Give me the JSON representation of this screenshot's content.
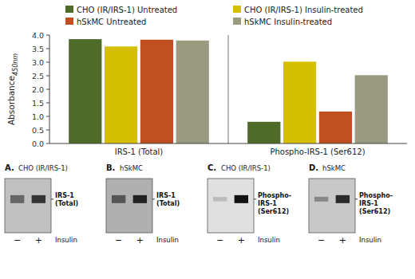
{
  "chart_data": {
    "type": "bar",
    "categories": [
      "IRS-1 (Total)",
      "Phospho-IRS-1 (Ser612)"
    ],
    "series": [
      {
        "name": "CHO (IR/IRS-1) Untreated",
        "color": "#4e6b28",
        "values": [
          3.85,
          0.8
        ]
      },
      {
        "name": "CHO (IR/IRS-1) Insulin-treated",
        "color": "#d4c000",
        "values": [
          3.58,
          3.02
        ]
      },
      {
        "name": "hSkMC Untreated",
        "color": "#c05020",
        "values": [
          3.83,
          1.18
        ]
      },
      {
        "name": "hSkMC Insulin-treated",
        "color": "#9a9a80",
        "values": [
          3.8,
          2.52
        ]
      }
    ],
    "y_label": "Absorbance",
    "y_label_subscript": "450nm",
    "ylim": [
      0,
      4.0
    ],
    "yticks": [
      {
        "value": 0,
        "label": "0.0"
      },
      0.5,
      {
        "value": 1.0,
        "label": "1.0"
      },
      1.5,
      {
        "value": 2.0,
        "label": "2.0"
      },
      2.5,
      {
        "value": 3.0,
        "label": "3.0"
      },
      3.5,
      {
        "value": 4.0,
        "label": "4.0"
      }
    ],
    "grid": false,
    "legend": "top",
    "annotations": [
      {
        "label": "A.",
        "subtitle": "CHO (IR/IRS-1)",
        "band_label": "IRS-1\n(Total)",
        "lane_labels": [
          "−",
          "+"
        ],
        "treatment_label": "Insulin"
      },
      {
        "label": "B.",
        "subtitle": "hSkMC",
        "band_label": "IRS-1\n(Total)",
        "lane_labels": [
          "−",
          "+"
        ],
        "treatment_label": "Insulin"
      },
      {
        "label": "C.",
        "subtitle": "CHO (IR/IRS-1)",
        "band_label": "Phospho-\nIRS-1\n(Ser612)",
        "lane_labels": [
          "−",
          "+"
        ],
        "treatment_label": "Insulin"
      },
      {
        "label": "D.",
        "subtitle": "hSkMC",
        "band_label": "Phospho-\nIRS-1\n(Ser612)",
        "lane_labels": [
          "−",
          "+"
        ],
        "treatment_label": "Insulin"
      }
    ]
  }
}
